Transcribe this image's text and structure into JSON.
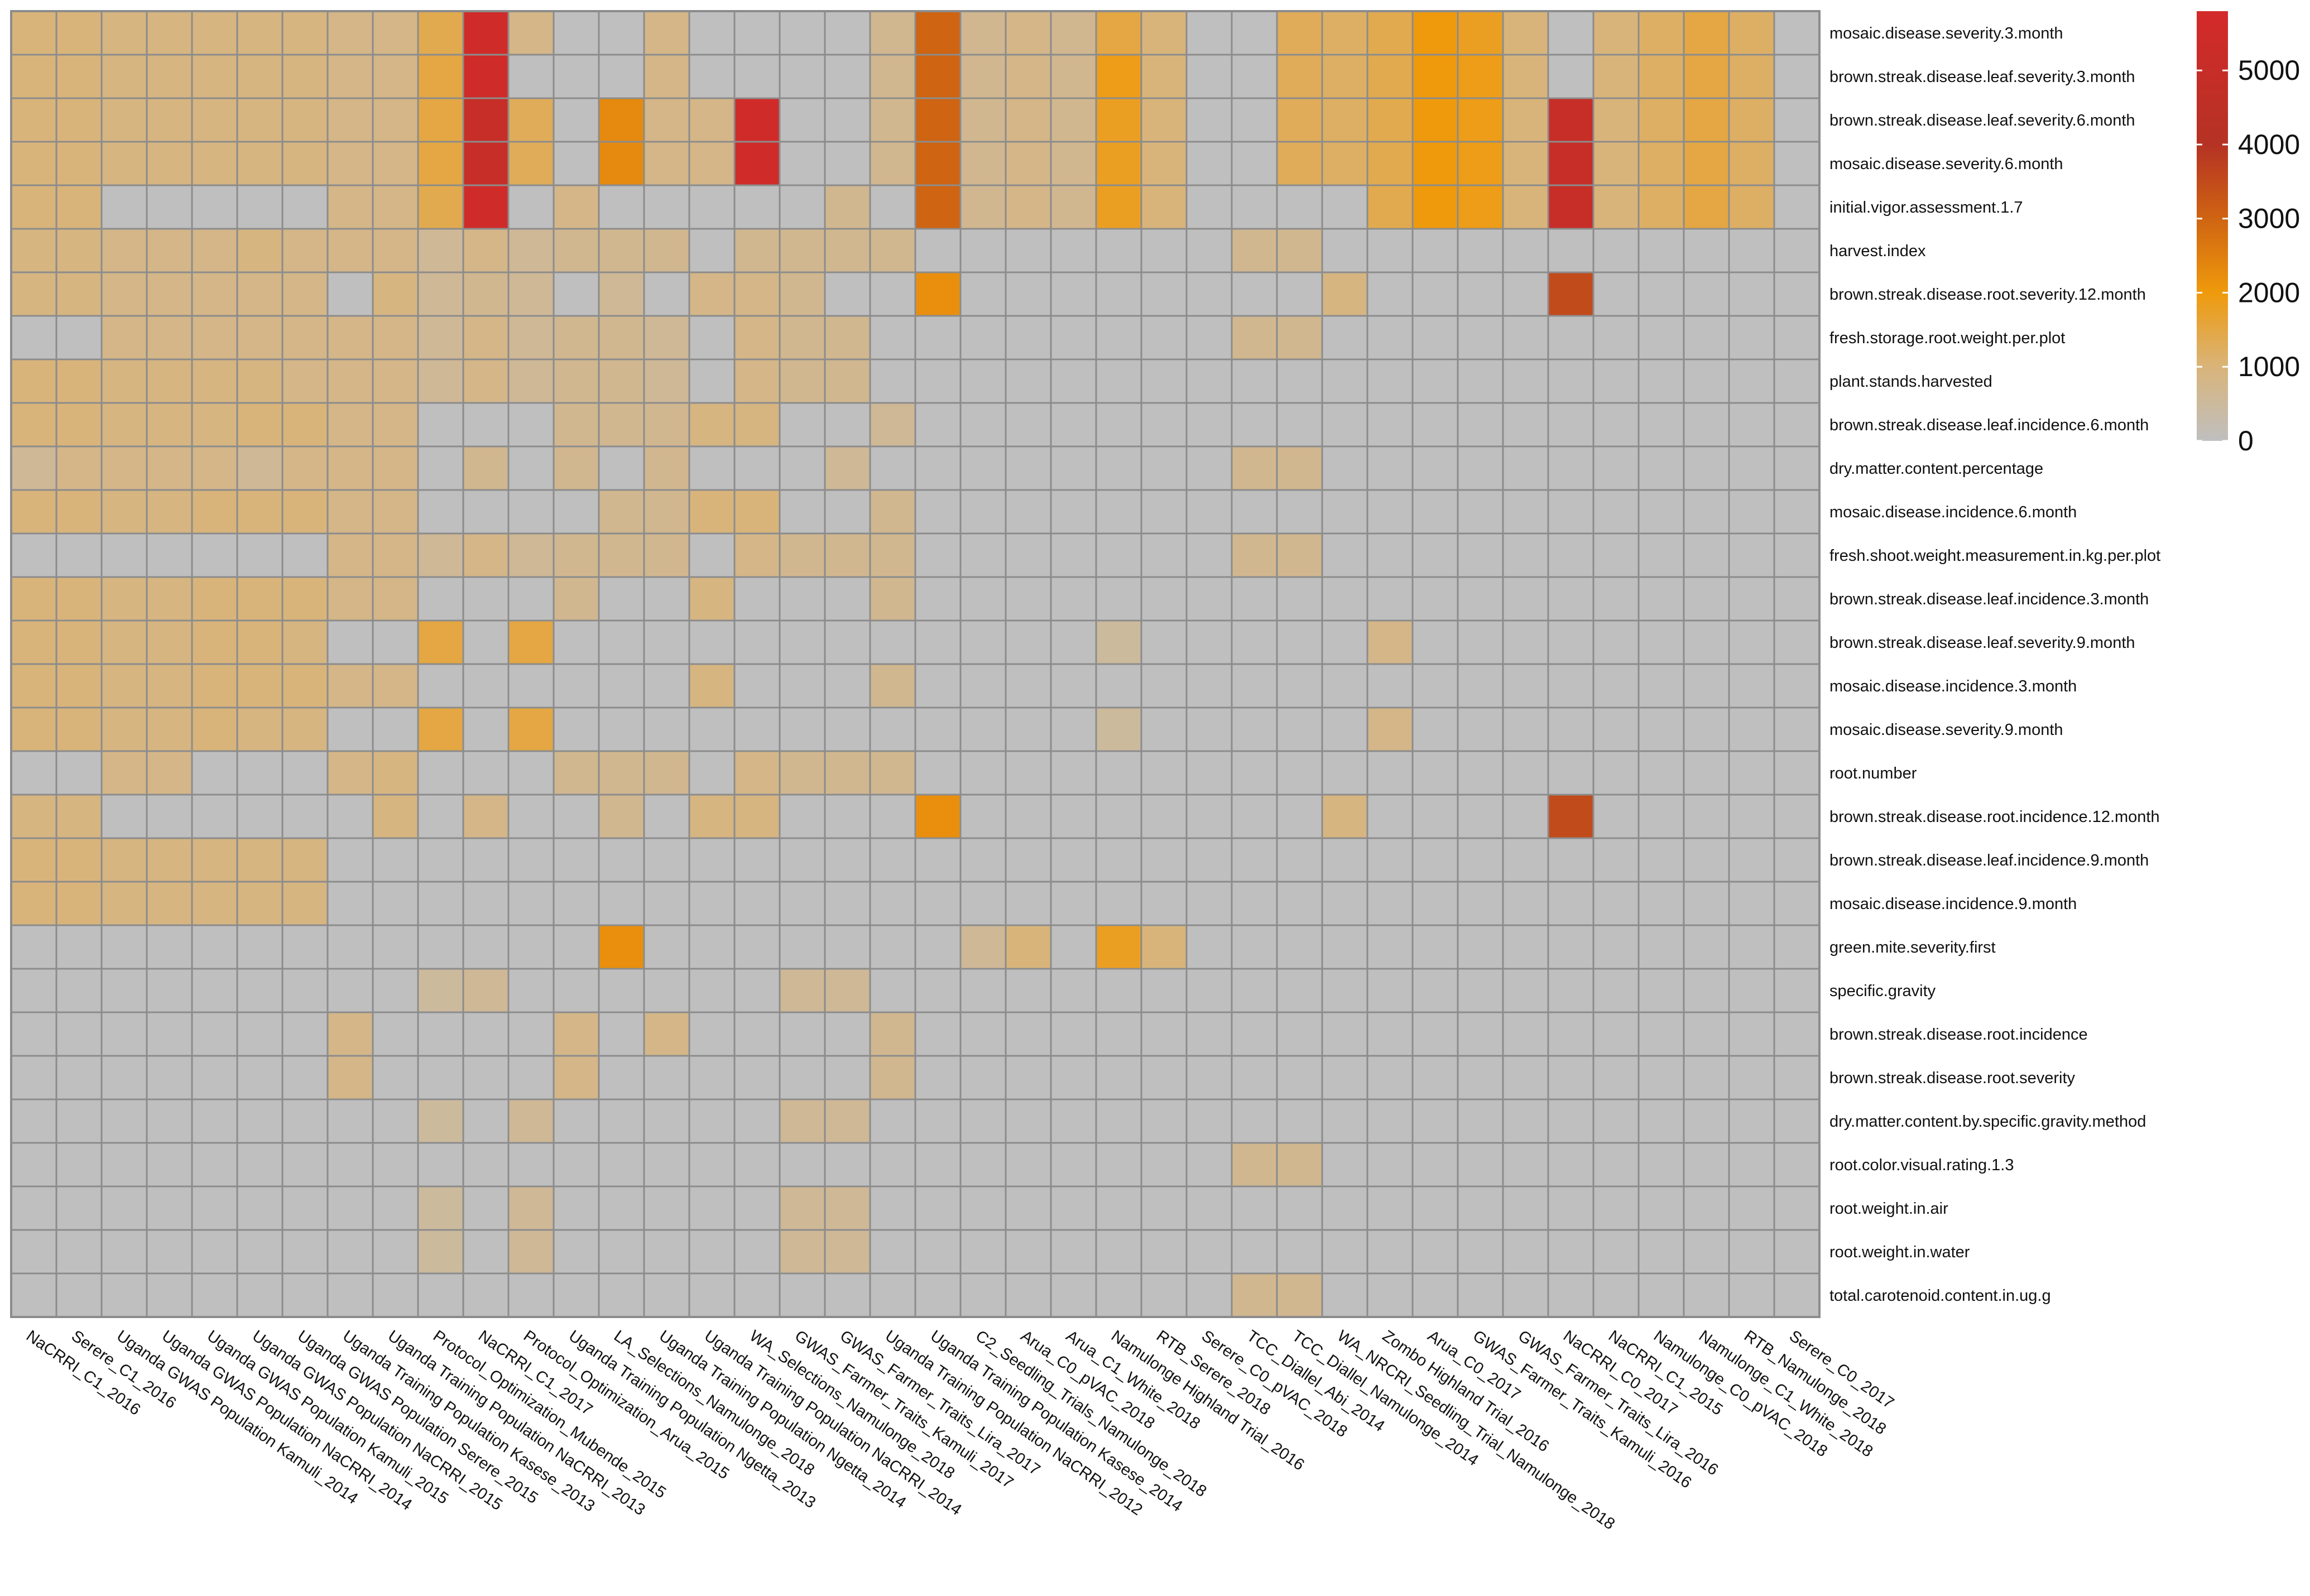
{
  "chart_data": {
    "type": "heatmap",
    "title": "",
    "colorbar": {
      "ticks": [
        0,
        1000,
        2000,
        3000,
        4000,
        5000
      ],
      "max": 5800,
      "stops": [
        {
          "v": 0,
          "c": "#bfbfbf"
        },
        {
          "v": 1000,
          "c": "#d9b47a"
        },
        {
          "v": 2000,
          "c": "#ef9a0c"
        },
        {
          "v": 3000,
          "c": "#cf6412"
        },
        {
          "v": 4000,
          "c": "#b53224"
        },
        {
          "v": 5800,
          "c": "#d42a2a"
        }
      ]
    },
    "rows": [
      "mosaic.disease.severity.3.month",
      "brown.streak.disease.leaf.severity.3.month",
      "brown.streak.disease.leaf.severity.6.month",
      "mosaic.disease.severity.6.month",
      "initial.vigor.assessment.1.7",
      "harvest.index",
      "brown.streak.disease.root.severity.12.month",
      "fresh.storage.root.weight.per.plot",
      "plant.stands.harvested",
      "brown.streak.disease.leaf.incidence.6.month",
      "dry.matter.content.percentage",
      "mosaic.disease.incidence.6.month",
      "fresh.shoot.weight.measurement.in.kg.per.plot",
      "brown.streak.disease.leaf.incidence.3.month",
      "brown.streak.disease.leaf.severity.9.month",
      "mosaic.disease.incidence.3.month",
      "mosaic.disease.severity.9.month",
      "root.number",
      "brown.streak.disease.root.incidence.12.month",
      "brown.streak.disease.leaf.incidence.9.month",
      "mosaic.disease.incidence.9.month",
      "green.mite.severity.first",
      "specific.gravity",
      "brown.streak.disease.root.incidence",
      "brown.streak.disease.root.severity",
      "dry.matter.content.by.specific.gravity.method",
      "root.color.visual.rating.1.3",
      "root.weight.in.air",
      "root.weight.in.water",
      "total.carotenoid.content.in.ug.g"
    ],
    "columns": [
      "NaCRRI_C1_2016",
      "Serere_C1_2016",
      "Uganda GWAS Population Kamuli_2014",
      "Uganda GWAS Population NaCRRI_2014",
      "Uganda GWAS Population Kamuli_2015",
      "Uganda GWAS Population NaCRRI_2015",
      "Uganda GWAS Population Serere_2015",
      "Uganda Training Population Kasese_2013",
      "Uganda Training Population NaCRRI_2013",
      "Protocol_Optimization_Mubende_2015",
      "NaCRRI_C1_2017",
      "Protocol_Optimization_Arua_2015",
      "Uganda Training Population Ngetta_2013",
      "LA_Selections_Namulonge_2018",
      "Uganda Training Population Ngetta_2014",
      "Uganda Training Population NaCRRI_2014",
      "WA_Selections_Namulonge_2018",
      "GWAS_Farmer_Traits_Kamuli_2017",
      "GWAS_Farmer_Traits_Lira_2017",
      "Uganda Training Population NaCRRI_2012",
      "Uganda Training Population Kasese_2014",
      "C2_Seedling_Trials_Namulonge_2018",
      "Arua_C0_pVAC_2018",
      "Arua_C1_White_2018",
      "Namulonge Highland Trial_2016",
      "RTB_Serere_2018",
      "Serere_C0_pVAC_2018",
      "TCC_Diallel_Abi_2014",
      "TCC_Diallel_Namulonge_2014",
      "WA_NRCRI_Seedling_Trial_Namulonge_2018",
      "Zombo Highland Trial_2016",
      "Arua_C0_2017",
      "GWAS_Farmer_Traits_Kamuli_2016",
      "GWAS_Farmer_Traits_Lira_2016",
      "NaCRRI_C0_2017",
      "NaCRRI_C1_2015",
      "Namulonge_C0_pVAC_2018",
      "Namulonge_C1_White_2018",
      "RTB_Namulonge_2018",
      "Serere_C0_2017"
    ],
    "values": [
      [
        1000,
        1000,
        900,
        900,
        900,
        900,
        900,
        800,
        800,
        1400,
        5500,
        800,
        0,
        0,
        800,
        0,
        0,
        0,
        0,
        700,
        3000,
        700,
        800,
        700,
        1500,
        1000,
        0,
        0,
        1300,
        1200,
        1400,
        2000,
        1800,
        1000,
        0,
        1000,
        1200,
        1500,
        1200,
        0
      ],
      [
        1000,
        1000,
        900,
        900,
        900,
        900,
        900,
        800,
        800,
        1500,
        5500,
        0,
        0,
        0,
        800,
        0,
        0,
        0,
        0,
        700,
        3000,
        700,
        800,
        700,
        1900,
        1000,
        0,
        0,
        1300,
        1200,
        1400,
        2000,
        1900,
        1000,
        0,
        1000,
        1200,
        1500,
        1200,
        0
      ],
      [
        1000,
        1000,
        900,
        900,
        900,
        900,
        900,
        800,
        800,
        1500,
        5000,
        1300,
        0,
        2300,
        800,
        800,
        5500,
        0,
        0,
        700,
        3000,
        700,
        800,
        700,
        1800,
        1000,
        0,
        0,
        1300,
        1200,
        1400,
        2000,
        1900,
        1000,
        5000,
        1000,
        1200,
        1500,
        1200,
        0
      ],
      [
        1000,
        1000,
        900,
        900,
        900,
        900,
        900,
        800,
        800,
        1500,
        5000,
        1300,
        0,
        2300,
        800,
        800,
        5500,
        0,
        0,
        700,
        3000,
        700,
        800,
        700,
        1800,
        1000,
        0,
        0,
        1300,
        1200,
        1400,
        2000,
        1900,
        1000,
        5000,
        1000,
        1200,
        1500,
        1200,
        0
      ],
      [
        1000,
        1000,
        0,
        0,
        0,
        0,
        0,
        800,
        800,
        1400,
        5500,
        0,
        800,
        0,
        0,
        0,
        0,
        0,
        700,
        0,
        3000,
        700,
        800,
        700,
        1800,
        1000,
        0,
        0,
        0,
        0,
        1400,
        2000,
        1900,
        1000,
        5000,
        1000,
        1200,
        1500,
        1200,
        0
      ],
      [
        900,
        900,
        800,
        800,
        800,
        900,
        800,
        800,
        800,
        600,
        800,
        600,
        700,
        700,
        700,
        0,
        700,
        700,
        700,
        700,
        0,
        0,
        0,
        0,
        0,
        0,
        0,
        700,
        700,
        0,
        0,
        0,
        0,
        0,
        0,
        0,
        0,
        0,
        0,
        0
      ],
      [
        900,
        900,
        800,
        800,
        800,
        800,
        800,
        0,
        900,
        600,
        700,
        600,
        0,
        600,
        0,
        800,
        800,
        700,
        0,
        0,
        2200,
        0,
        0,
        0,
        0,
        0,
        0,
        0,
        0,
        900,
        0,
        0,
        0,
        0,
        3500,
        0,
        0,
        0,
        0,
        0
      ],
      [
        0,
        0,
        800,
        800,
        800,
        800,
        800,
        800,
        800,
        600,
        800,
        600,
        700,
        700,
        600,
        0,
        800,
        700,
        700,
        0,
        0,
        0,
        0,
        0,
        0,
        0,
        0,
        700,
        700,
        0,
        0,
        0,
        0,
        0,
        0,
        0,
        0,
        0,
        0,
        0
      ],
      [
        1000,
        1000,
        900,
        900,
        900,
        900,
        800,
        800,
        800,
        600,
        800,
        600,
        700,
        700,
        600,
        0,
        800,
        700,
        700,
        0,
        0,
        0,
        0,
        0,
        0,
        0,
        0,
        0,
        0,
        0,
        0,
        0,
        0,
        0,
        0,
        0,
        0,
        0,
        0,
        0
      ],
      [
        1000,
        1000,
        900,
        900,
        900,
        1000,
        1000,
        800,
        800,
        0,
        0,
        0,
        700,
        700,
        700,
        900,
        900,
        0,
        0,
        600,
        0,
        0,
        0,
        0,
        0,
        0,
        0,
        0,
        0,
        0,
        0,
        0,
        0,
        0,
        0,
        0,
        0,
        0,
        0,
        0
      ],
      [
        600,
        800,
        800,
        800,
        800,
        600,
        800,
        800,
        800,
        0,
        700,
        0,
        700,
        0,
        700,
        0,
        0,
        0,
        600,
        0,
        0,
        0,
        0,
        0,
        0,
        0,
        0,
        700,
        700,
        0,
        0,
        0,
        0,
        0,
        0,
        0,
        0,
        0,
        0,
        0
      ],
      [
        1000,
        1000,
        900,
        900,
        1000,
        1000,
        1000,
        800,
        800,
        0,
        0,
        0,
        0,
        700,
        700,
        1000,
        1000,
        0,
        0,
        700,
        0,
        0,
        0,
        0,
        0,
        0,
        0,
        0,
        0,
        0,
        0,
        0,
        0,
        0,
        0,
        0,
        0,
        0,
        0,
        0
      ],
      [
        0,
        0,
        0,
        0,
        0,
        0,
        0,
        800,
        800,
        600,
        800,
        600,
        700,
        700,
        700,
        0,
        800,
        700,
        700,
        700,
        0,
        0,
        0,
        0,
        0,
        0,
        0,
        700,
        700,
        0,
        0,
        0,
        0,
        0,
        0,
        0,
        0,
        0,
        0,
        0
      ],
      [
        1000,
        1000,
        900,
        900,
        1000,
        1000,
        1000,
        800,
        800,
        0,
        0,
        0,
        700,
        0,
        0,
        900,
        0,
        0,
        0,
        700,
        0,
        0,
        0,
        0,
        0,
        0,
        0,
        0,
        0,
        0,
        0,
        0,
        0,
        0,
        0,
        0,
        0,
        0,
        0,
        0
      ],
      [
        1000,
        1000,
        900,
        900,
        1000,
        1000,
        900,
        0,
        0,
        1500,
        0,
        1500,
        0,
        0,
        0,
        0,
        0,
        0,
        0,
        0,
        0,
        0,
        0,
        0,
        500,
        0,
        0,
        0,
        0,
        0,
        800,
        0,
        0,
        0,
        0,
        0,
        0,
        0,
        0,
        0
      ],
      [
        1000,
        1000,
        900,
        900,
        1000,
        1000,
        1000,
        800,
        800,
        0,
        0,
        0,
        0,
        0,
        0,
        900,
        0,
        0,
        0,
        700,
        0,
        0,
        0,
        0,
        0,
        0,
        0,
        0,
        0,
        0,
        0,
        0,
        0,
        0,
        0,
        0,
        0,
        0,
        0,
        0
      ],
      [
        1000,
        1000,
        900,
        900,
        1000,
        900,
        900,
        0,
        0,
        1500,
        0,
        1500,
        0,
        0,
        0,
        0,
        0,
        0,
        0,
        0,
        0,
        0,
        0,
        0,
        500,
        0,
        0,
        0,
        0,
        0,
        800,
        0,
        0,
        0,
        0,
        0,
        0,
        0,
        0,
        0
      ],
      [
        0,
        0,
        800,
        800,
        0,
        0,
        0,
        800,
        900,
        0,
        0,
        0,
        700,
        700,
        700,
        0,
        800,
        700,
        700,
        700,
        0,
        0,
        0,
        0,
        0,
        0,
        0,
        0,
        0,
        0,
        0,
        0,
        0,
        0,
        0,
        0,
        0,
        0,
        0,
        0
      ],
      [
        900,
        900,
        0,
        0,
        0,
        0,
        0,
        0,
        900,
        0,
        800,
        0,
        0,
        700,
        0,
        900,
        900,
        0,
        0,
        0,
        2200,
        0,
        0,
        0,
        0,
        0,
        0,
        0,
        0,
        900,
        0,
        0,
        0,
        0,
        3500,
        0,
        0,
        0,
        0,
        0
      ],
      [
        1000,
        1000,
        900,
        900,
        900,
        900,
        900,
        0,
        0,
        0,
        0,
        0,
        0,
        0,
        0,
        0,
        0,
        0,
        0,
        0,
        0,
        0,
        0,
        0,
        0,
        0,
        0,
        0,
        0,
        0,
        0,
        0,
        0,
        0,
        0,
        0,
        0,
        0,
        0,
        0
      ],
      [
        1000,
        1000,
        900,
        900,
        900,
        900,
        900,
        0,
        0,
        0,
        0,
        0,
        0,
        0,
        0,
        0,
        0,
        0,
        0,
        0,
        0,
        0,
        0,
        0,
        0,
        0,
        0,
        0,
        0,
        0,
        0,
        0,
        0,
        0,
        0,
        0,
        0,
        0,
        0,
        0
      ],
      [
        0,
        0,
        0,
        0,
        0,
        0,
        0,
        0,
        0,
        0,
        0,
        0,
        0,
        2200,
        0,
        0,
        0,
        0,
        0,
        0,
        0,
        600,
        1000,
        0,
        1800,
        1000,
        0,
        0,
        0,
        0,
        0,
        0,
        0,
        0,
        0,
        0,
        0,
        0,
        0,
        0
      ],
      [
        0,
        0,
        0,
        0,
        0,
        0,
        0,
        0,
        0,
        500,
        600,
        0,
        0,
        0,
        0,
        0,
        0,
        600,
        600,
        0,
        0,
        0,
        0,
        0,
        0,
        0,
        0,
        0,
        0,
        0,
        0,
        0,
        0,
        0,
        0,
        0,
        0,
        0,
        0,
        0
      ],
      [
        0,
        0,
        0,
        0,
        0,
        0,
        0,
        800,
        0,
        0,
        0,
        0,
        800,
        0,
        800,
        0,
        0,
        0,
        0,
        700,
        0,
        0,
        0,
        0,
        0,
        0,
        0,
        0,
        0,
        0,
        0,
        0,
        0,
        0,
        0,
        0,
        0,
        0,
        0,
        0
      ],
      [
        0,
        0,
        0,
        0,
        0,
        0,
        0,
        800,
        0,
        0,
        0,
        0,
        800,
        0,
        0,
        0,
        0,
        0,
        0,
        700,
        0,
        0,
        0,
        0,
        0,
        0,
        0,
        0,
        0,
        0,
        0,
        0,
        0,
        0,
        0,
        0,
        0,
        0,
        0,
        0
      ],
      [
        0,
        0,
        0,
        0,
        0,
        0,
        0,
        0,
        0,
        500,
        0,
        600,
        0,
        0,
        0,
        0,
        0,
        600,
        600,
        0,
        0,
        0,
        0,
        0,
        0,
        0,
        0,
        0,
        0,
        0,
        0,
        0,
        0,
        0,
        0,
        0,
        0,
        0,
        0,
        0
      ],
      [
        0,
        0,
        0,
        0,
        0,
        0,
        0,
        0,
        0,
        0,
        0,
        0,
        0,
        0,
        0,
        0,
        0,
        0,
        0,
        0,
        0,
        0,
        0,
        0,
        0,
        0,
        0,
        700,
        700,
        0,
        0,
        0,
        0,
        0,
        0,
        0,
        0,
        0,
        0,
        0
      ],
      [
        0,
        0,
        0,
        0,
        0,
        0,
        0,
        0,
        0,
        500,
        0,
        600,
        0,
        0,
        0,
        0,
        0,
        600,
        600,
        0,
        0,
        0,
        0,
        0,
        0,
        0,
        0,
        0,
        0,
        0,
        0,
        0,
        0,
        0,
        0,
        0,
        0,
        0,
        0,
        0
      ],
      [
        0,
        0,
        0,
        0,
        0,
        0,
        0,
        0,
        0,
        500,
        0,
        600,
        0,
        0,
        0,
        0,
        0,
        600,
        600,
        0,
        0,
        0,
        0,
        0,
        0,
        0,
        0,
        0,
        0,
        0,
        0,
        0,
        0,
        0,
        0,
        0,
        0,
        0,
        0,
        0
      ],
      [
        0,
        0,
        0,
        0,
        0,
        0,
        0,
        0,
        0,
        0,
        0,
        0,
        0,
        0,
        0,
        0,
        0,
        0,
        0,
        0,
        0,
        0,
        0,
        0,
        0,
        0,
        0,
        700,
        700,
        0,
        0,
        0,
        0,
        0,
        0,
        0,
        0,
        0,
        0,
        0
      ]
    ]
  }
}
